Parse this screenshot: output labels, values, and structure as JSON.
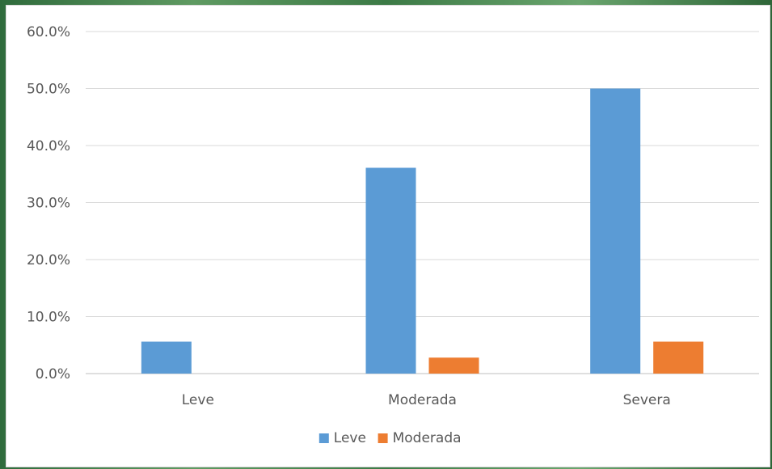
{
  "chart_data": {
    "type": "bar",
    "title": "",
    "xlabel": "",
    "ylabel": "",
    "categories": [
      "Leve",
      "Moderada",
      "Severa"
    ],
    "series": [
      {
        "name": "Leve",
        "color": "#5b9bd5",
        "values": [
          5.6,
          36.1,
          50.0
        ]
      },
      {
        "name": "Moderada",
        "color": "#ed7d31",
        "values": [
          0.0,
          2.8,
          5.6
        ]
      }
    ],
    "ylim": [
      0,
      60
    ],
    "yticks": [
      "0.0%",
      "10.0%",
      "20.0%",
      "30.0%",
      "40.0%",
      "50.0%",
      "60.0%"
    ],
    "grid": true,
    "legend_position": "bottom"
  }
}
